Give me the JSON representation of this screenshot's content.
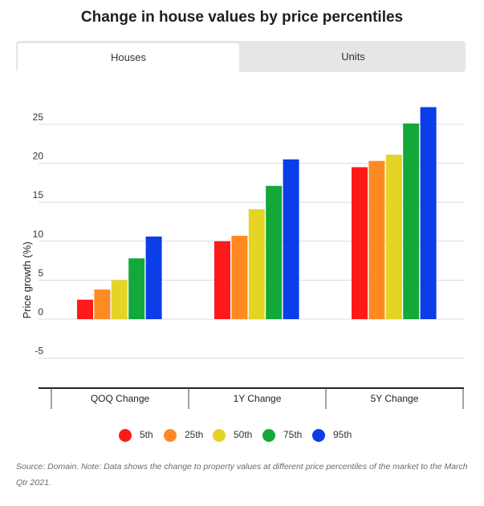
{
  "title": "Change in house values by price percentiles",
  "tabs": [
    {
      "label": "Houses",
      "active": true
    },
    {
      "label": "Units",
      "active": false
    }
  ],
  "source_note": "Source: Domain. Note: Data shows the change to property values at different price percentiles of the market to the March Qtr 2021.",
  "chart_data": {
    "type": "bar",
    "categories": [
      "QOQ Change",
      "1Y Change",
      "5Y Change"
    ],
    "ylabel": "Price growth (%)",
    "xlabel": "",
    "ylim": [
      -10,
      30
    ],
    "yticks": [
      -5,
      0,
      5,
      10,
      15,
      20,
      25
    ],
    "grid": true,
    "legend_position": "bottom",
    "series": [
      {
        "name": "5th",
        "color": "#ff1a1a",
        "values": [
          2.5,
          10.0,
          19.5
        ]
      },
      {
        "name": "25th",
        "color": "#ff8a22",
        "values": [
          3.8,
          10.7,
          20.3
        ]
      },
      {
        "name": "50th",
        "color": "#e3d426",
        "values": [
          5.0,
          14.1,
          21.1
        ]
      },
      {
        "name": "75th",
        "color": "#13a83a",
        "values": [
          7.8,
          17.1,
          25.1
        ]
      },
      {
        "name": "95th",
        "color": "#0b3de8",
        "values": [
          10.6,
          20.5,
          27.2
        ]
      }
    ]
  }
}
